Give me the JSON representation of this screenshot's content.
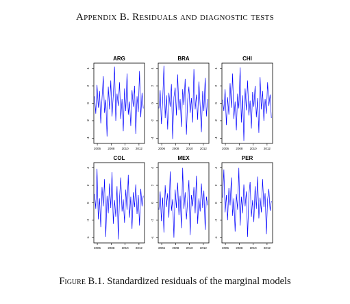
{
  "heading": "Appendix B. Residuals and diagnostic tests",
  "caption": {
    "label": "Figure B.1.",
    "text": "Standardized residuals of the marginal models"
  },
  "chart_data": [
    {
      "type": "line",
      "title": "ARG",
      "xlim": [
        2005.5,
        2012.8
      ],
      "ylim": [
        -4.6,
        4.6
      ],
      "xticks": [
        2006,
        2008,
        2010,
        2012
      ],
      "yticks": [
        -4,
        -2,
        0,
        2,
        4
      ],
      "x": [
        2005.6,
        2005.78,
        2005.96,
        2006.14,
        2006.32,
        2006.5,
        2006.68,
        2006.86,
        2007.04,
        2007.22,
        2007.4,
        2007.58,
        2007.76,
        2007.94,
        2008.12,
        2008.3,
        2008.48,
        2008.66,
        2008.84,
        2009.02,
        2009.2,
        2009.38,
        2009.56,
        2009.74,
        2009.92,
        2010.1,
        2010.28,
        2010.46,
        2010.64,
        2010.82,
        2011.0,
        2011.18,
        2011.36,
        2011.54,
        2011.72,
        2011.9,
        2012.08,
        2012.26,
        2012.44,
        2012.62
      ],
      "series": [
        {
          "color": "#0000ff",
          "values": [
            0.8,
            -1.2,
            2.1,
            -0.5,
            1.4,
            -2.3,
            0.6,
            3.1,
            -1.1,
            0.4,
            -3.8,
            1.9,
            -0.7,
            2.6,
            -1.5,
            0.9,
            4.2,
            -2.0,
            1.1,
            -0.3,
            2.4,
            -1.8,
            0.5,
            -3.2,
            1.7,
            -0.9,
            3.4,
            -1.3,
            0.2,
            -2.6,
            1.5,
            -0.4,
            2.0,
            -3.5,
            0.8,
            -1.0,
            3.7,
            -1.6,
            1.2,
            -0.6
          ]
        }
      ]
    },
    {
      "type": "line",
      "title": "BRA",
      "xlim": [
        2005.5,
        2012.8
      ],
      "ylim": [
        -4.6,
        4.6
      ],
      "xticks": [
        2006,
        2008,
        2010,
        2012
      ],
      "yticks": [
        -4,
        -2,
        0,
        2,
        4
      ],
      "x": [
        2005.6,
        2005.78,
        2005.96,
        2006.14,
        2006.32,
        2006.5,
        2006.68,
        2006.86,
        2007.04,
        2007.22,
        2007.4,
        2007.58,
        2007.76,
        2007.94,
        2008.12,
        2008.3,
        2008.48,
        2008.66,
        2008.84,
        2009.02,
        2009.2,
        2009.38,
        2009.56,
        2009.74,
        2009.92,
        2010.1,
        2010.28,
        2010.46,
        2010.64,
        2010.82,
        2011.0,
        2011.18,
        2011.36,
        2011.54,
        2011.72,
        2011.9,
        2012.08,
        2012.26,
        2012.44,
        2012.62
      ],
      "series": [
        {
          "color": "#0000ff",
          "values": [
            -0.6,
            1.5,
            -2.4,
            0.3,
            4.3,
            -1.7,
            0.9,
            -3.0,
            1.2,
            -0.4,
            2.2,
            -4.1,
            0.7,
            1.8,
            -1.4,
            3.3,
            -0.8,
            0.5,
            -2.7,
            1.6,
            -0.2,
            2.8,
            -3.6,
            0.4,
            1.9,
            -1.1,
            0.6,
            -2.2,
            3.9,
            -0.7,
            1.0,
            -1.9,
            2.5,
            -0.3,
            -3.3,
            1.4,
            -0.9,
            2.9,
            -1.5,
            0.5
          ]
        }
      ]
    },
    {
      "type": "line",
      "title": "CHI",
      "xlim": [
        2005.5,
        2012.8
      ],
      "ylim": [
        -4.6,
        4.6
      ],
      "xticks": [
        2006,
        2008,
        2010,
        2012
      ],
      "yticks": [
        -4,
        -2,
        0,
        2,
        4
      ],
      "x": [
        2005.6,
        2005.78,
        2005.96,
        2006.14,
        2006.32,
        2006.5,
        2006.68,
        2006.86,
        2007.04,
        2007.22,
        2007.4,
        2007.58,
        2007.76,
        2007.94,
        2008.12,
        2008.3,
        2008.48,
        2008.66,
        2008.84,
        2009.02,
        2009.2,
        2009.38,
        2009.56,
        2009.74,
        2009.92,
        2010.1,
        2010.28,
        2010.46,
        2010.64,
        2010.82,
        2011.0,
        2011.18,
        2011.36,
        2011.54,
        2011.72,
        2011.9,
        2012.08,
        2012.26,
        2012.44,
        2012.62
      ],
      "series": [
        {
          "color": "#0000ff",
          "values": [
            0.4,
            -0.9,
            1.6,
            -2.5,
            0.7,
            -1.3,
            2.3,
            -0.5,
            3.4,
            -1.8,
            0.2,
            -3.1,
            1.1,
            -0.6,
            4.1,
            -2.2,
            0.9,
            -4.3,
            1.7,
            -0.8,
            2.6,
            -1.4,
            0.3,
            -2.9,
            1.3,
            -0.4,
            2.0,
            -1.6,
            0.6,
            -3.4,
            3.0,
            -0.7,
            1.4,
            -2.0,
            0.5,
            -1.2,
            2.4,
            -0.3,
            1.0,
            -1.7
          ]
        }
      ]
    },
    {
      "type": "line",
      "title": "COL",
      "xlim": [
        2005.5,
        2012.8
      ],
      "ylim": [
        -4.6,
        4.6
      ],
      "xticks": [
        2006,
        2008,
        2010,
        2012
      ],
      "yticks": [
        -4,
        -2,
        0,
        2,
        4
      ],
      "x": [
        2005.6,
        2005.78,
        2005.96,
        2006.14,
        2006.32,
        2006.5,
        2006.68,
        2006.86,
        2007.04,
        2007.22,
        2007.4,
        2007.58,
        2007.76,
        2007.94,
        2008.12,
        2008.3,
        2008.48,
        2008.66,
        2008.84,
        2009.02,
        2009.2,
        2009.38,
        2009.56,
        2009.74,
        2009.92,
        2010.1,
        2010.28,
        2010.46,
        2010.64,
        2010.82,
        2011.0,
        2011.18,
        2011.36,
        2011.54,
        2011.72,
        2011.9,
        2012.08,
        2012.26,
        2012.44,
        2012.62
      ],
      "series": [
        {
          "color": "#0000ff",
          "values": [
            1.0,
            -0.7,
            3.9,
            -1.9,
            0.5,
            -2.8,
            1.8,
            -0.4,
            2.7,
            -3.9,
            0.8,
            -1.2,
            2.2,
            -0.6,
            3.5,
            -2.4,
            0.3,
            -1.6,
            1.9,
            -4.2,
            0.6,
            2.9,
            -1.0,
            0.4,
            -2.3,
            1.5,
            -0.8,
            3.2,
            -1.7,
            0.7,
            -3.0,
            1.2,
            -0.5,
            2.1,
            -1.3,
            0.9,
            -2.6,
            1.6,
            -0.4,
            0.8
          ]
        }
      ]
    },
    {
      "type": "line",
      "title": "MEX",
      "xlim": [
        2005.5,
        2012.8
      ],
      "ylim": [
        -4.6,
        4.6
      ],
      "xticks": [
        2006,
        2008,
        2010,
        2012
      ],
      "yticks": [
        -4,
        -2,
        0,
        2,
        4
      ],
      "x": [
        2005.6,
        2005.78,
        2005.96,
        2006.14,
        2006.32,
        2006.5,
        2006.68,
        2006.86,
        2007.04,
        2007.22,
        2007.4,
        2007.58,
        2007.76,
        2007.94,
        2008.12,
        2008.3,
        2008.48,
        2008.66,
        2008.84,
        2009.02,
        2009.2,
        2009.38,
        2009.56,
        2009.74,
        2009.92,
        2010.1,
        2010.28,
        2010.46,
        2010.64,
        2010.82,
        2011.0,
        2011.18,
        2011.36,
        2011.54,
        2011.72,
        2011.9,
        2012.08,
        2012.26,
        2012.44,
        2012.62
      ],
      "series": [
        {
          "color": "#0000ff",
          "values": [
            -0.8,
            1.3,
            -2.1,
            0.6,
            -3.4,
            2.0,
            -0.5,
            1.1,
            -1.7,
            3.6,
            -0.9,
            0.4,
            -4.0,
            1.5,
            -0.6,
            2.3,
            -1.4,
            0.8,
            -2.9,
            4.0,
            -0.7,
            1.2,
            -1.9,
            0.3,
            2.6,
            -3.7,
            0.9,
            -0.4,
            1.8,
            -1.2,
            3.1,
            -2.4,
            0.5,
            -1.0,
            2.2,
            -0.6,
            1.4,
            -3.1,
            0.7,
            -0.3
          ]
        }
      ]
    },
    {
      "type": "line",
      "title": "PER",
      "xlim": [
        2005.5,
        2012.8
      ],
      "ylim": [
        -4.6,
        4.6
      ],
      "xticks": [
        2006,
        2008,
        2010,
        2012
      ],
      "yticks": [
        -4,
        -2,
        0,
        2,
        4
      ],
      "x": [
        2005.6,
        2005.78,
        2005.96,
        2006.14,
        2006.32,
        2006.5,
        2006.68,
        2006.86,
        2007.04,
        2007.22,
        2007.4,
        2007.58,
        2007.76,
        2007.94,
        2008.12,
        2008.3,
        2008.48,
        2008.66,
        2008.84,
        2009.02,
        2009.2,
        2009.38,
        2009.56,
        2009.74,
        2009.92,
        2010.1,
        2010.28,
        2010.46,
        2010.64,
        2010.82,
        2011.0,
        2011.18,
        2011.36,
        2011.54,
        2011.72,
        2011.9,
        2012.08,
        2012.26,
        2012.44,
        2012.62
      ],
      "series": [
        {
          "color": "#0000ff",
          "values": [
            0.6,
            3.8,
            -1.1,
            0.9,
            -2.0,
            1.7,
            -0.3,
            2.9,
            -1.5,
            0.5,
            -3.3,
            1.0,
            -0.8,
            4.0,
            -2.6,
            0.7,
            -1.2,
            2.1,
            -0.4,
            1.3,
            -3.9,
            0.8,
            2.4,
            -1.6,
            0.3,
            -2.2,
            1.9,
            -0.7,
            3.0,
            -1.8,
            0.6,
            -1.1,
            2.7,
            -0.5,
            1.1,
            -3.6,
            0.4,
            1.6,
            -0.9,
            0.2
          ]
        }
      ]
    }
  ]
}
